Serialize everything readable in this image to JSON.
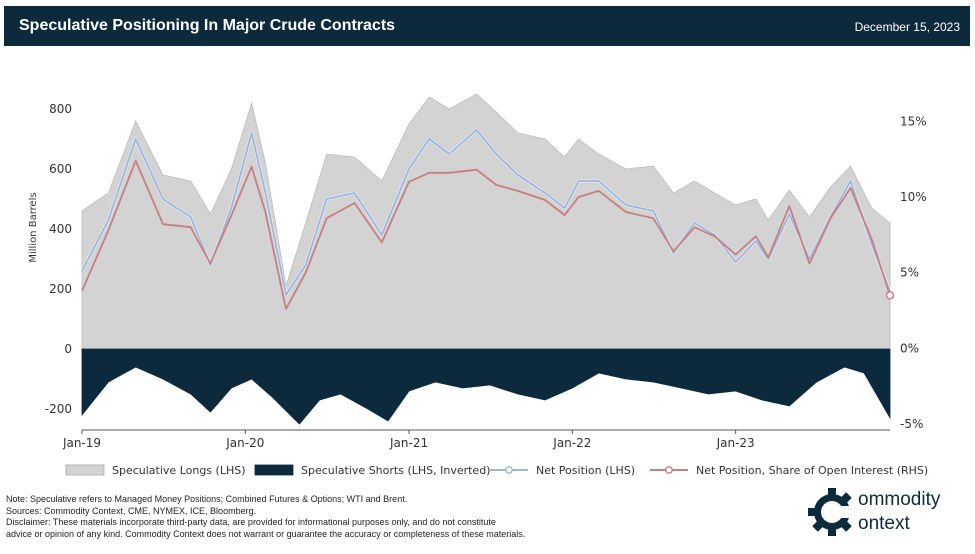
{
  "header": {
    "title": "Speculative Positioning In Major Crude Contracts",
    "date": "December 15, 2023"
  },
  "colors": {
    "header_bg": "#0d2a3c",
    "longs": "#d3d3d3",
    "shorts": "#0d2a3c",
    "net": "#9fb5d8",
    "share": "#c77f80"
  },
  "chart_data": {
    "type": "area",
    "ylabel": "Million Barrels",
    "ylim": [
      -270,
      880
    ],
    "ylim_right_pct": [
      -5.4,
      17.4
    ],
    "y_ticks": [
      -200,
      0,
      200,
      400,
      600,
      800
    ],
    "y_tick_labels": [
      "-200",
      "0",
      "200",
      "400",
      "600",
      "800"
    ],
    "y2_ticks": [
      -5,
      0,
      5,
      10,
      15
    ],
    "y2_tick_labels": [
      "-5%",
      "0%",
      "5%",
      "10%",
      "15%"
    ],
    "x_ticks": [
      "2019-01",
      "2020-01",
      "2021-01",
      "2022-01",
      "2023-01"
    ],
    "x_tick_labels": [
      "Jan-19",
      "Jan-20",
      "Jan-21",
      "Jan-22",
      "Jan-23"
    ],
    "x_range": [
      "2019-01-01",
      "2023-12-12"
    ],
    "grid": false,
    "legend_position": "bottom",
    "series": [
      {
        "name": "Speculative Longs (LHS)",
        "axis": "left",
        "style": "area",
        "points": [
          [
            "2019-01-01",
            460
          ],
          [
            "2019-03-01",
            520
          ],
          [
            "2019-05-01",
            760
          ],
          [
            "2019-07-01",
            580
          ],
          [
            "2019-09-01",
            560
          ],
          [
            "2019-10-15",
            450
          ],
          [
            "2019-12-01",
            600
          ],
          [
            "2020-01-15",
            820
          ],
          [
            "2020-02-15",
            620
          ],
          [
            "2020-04-01",
            210
          ],
          [
            "2020-05-15",
            420
          ],
          [
            "2020-07-01",
            650
          ],
          [
            "2020-09-01",
            640
          ],
          [
            "2020-11-01",
            560
          ],
          [
            "2021-01-01",
            750
          ],
          [
            "2021-02-15",
            840
          ],
          [
            "2021-04-01",
            800
          ],
          [
            "2021-06-01",
            850
          ],
          [
            "2021-07-15",
            790
          ],
          [
            "2021-09-01",
            720
          ],
          [
            "2021-11-01",
            700
          ],
          [
            "2021-12-15",
            640
          ],
          [
            "2022-01-15",
            700
          ],
          [
            "2022-03-01",
            650
          ],
          [
            "2022-05-01",
            600
          ],
          [
            "2022-07-01",
            610
          ],
          [
            "2022-08-15",
            520
          ],
          [
            "2022-10-01",
            560
          ],
          [
            "2022-11-15",
            520
          ],
          [
            "2023-01-01",
            480
          ],
          [
            "2023-02-15",
            500
          ],
          [
            "2023-03-15",
            430
          ],
          [
            "2023-05-01",
            530
          ],
          [
            "2023-06-15",
            440
          ],
          [
            "2023-08-01",
            540
          ],
          [
            "2023-09-15",
            610
          ],
          [
            "2023-11-01",
            470
          ],
          [
            "2023-12-12",
            420
          ]
        ]
      },
      {
        "name": "Speculative Shorts (LHS, Inverted)",
        "axis": "left",
        "style": "area",
        "points": [
          [
            "2019-01-01",
            -220
          ],
          [
            "2019-03-01",
            -110
          ],
          [
            "2019-05-01",
            -60
          ],
          [
            "2019-07-01",
            -100
          ],
          [
            "2019-09-01",
            -150
          ],
          [
            "2019-10-15",
            -210
          ],
          [
            "2019-12-01",
            -130
          ],
          [
            "2020-01-15",
            -100
          ],
          [
            "2020-03-01",
            -160
          ],
          [
            "2020-05-01",
            -250
          ],
          [
            "2020-06-15",
            -170
          ],
          [
            "2020-08-01",
            -150
          ],
          [
            "2020-10-01",
            -200
          ],
          [
            "2020-11-15",
            -240
          ],
          [
            "2021-01-01",
            -140
          ],
          [
            "2021-03-01",
            -110
          ],
          [
            "2021-05-01",
            -130
          ],
          [
            "2021-07-01",
            -120
          ],
          [
            "2021-09-01",
            -150
          ],
          [
            "2021-11-01",
            -170
          ],
          [
            "2022-01-01",
            -130
          ],
          [
            "2022-03-01",
            -80
          ],
          [
            "2022-05-01",
            -100
          ],
          [
            "2022-07-01",
            -110
          ],
          [
            "2022-09-01",
            -130
          ],
          [
            "2022-11-01",
            -150
          ],
          [
            "2023-01-01",
            -140
          ],
          [
            "2023-03-01",
            -170
          ],
          [
            "2023-05-01",
            -190
          ],
          [
            "2023-07-01",
            -110
          ],
          [
            "2023-09-01",
            -60
          ],
          [
            "2023-10-15",
            -80
          ],
          [
            "2023-12-12",
            -230
          ]
        ]
      },
      {
        "name": "Net Position (LHS)",
        "axis": "left",
        "style": "line",
        "points": [
          [
            "2019-01-01",
            260
          ],
          [
            "2019-03-01",
            430
          ],
          [
            "2019-05-01",
            700
          ],
          [
            "2019-07-01",
            500
          ],
          [
            "2019-09-01",
            440
          ],
          [
            "2019-10-15",
            280
          ],
          [
            "2019-12-01",
            470
          ],
          [
            "2020-01-15",
            720
          ],
          [
            "2020-02-15",
            520
          ],
          [
            "2020-04-01",
            180
          ],
          [
            "2020-05-15",
            280
          ],
          [
            "2020-07-01",
            500
          ],
          [
            "2020-09-01",
            520
          ],
          [
            "2020-11-01",
            380
          ],
          [
            "2021-01-01",
            600
          ],
          [
            "2021-02-15",
            700
          ],
          [
            "2021-04-01",
            650
          ],
          [
            "2021-06-01",
            730
          ],
          [
            "2021-07-15",
            650
          ],
          [
            "2021-09-01",
            580
          ],
          [
            "2021-11-01",
            520
          ],
          [
            "2021-12-15",
            470
          ],
          [
            "2022-01-15",
            560
          ],
          [
            "2022-03-01",
            560
          ],
          [
            "2022-05-01",
            480
          ],
          [
            "2022-07-01",
            460
          ],
          [
            "2022-08-15",
            320
          ],
          [
            "2022-10-01",
            420
          ],
          [
            "2022-11-15",
            380
          ],
          [
            "2023-01-01",
            290
          ],
          [
            "2023-02-15",
            360
          ],
          [
            "2023-03-15",
            300
          ],
          [
            "2023-05-01",
            450
          ],
          [
            "2023-06-15",
            300
          ],
          [
            "2023-08-01",
            440
          ],
          [
            "2023-09-15",
            560
          ],
          [
            "2023-11-01",
            350
          ],
          [
            "2023-12-12",
            190
          ]
        ]
      },
      {
        "name": "Net Position, Share of Open Interest (RHS)",
        "axis": "right",
        "style": "line",
        "points": [
          [
            "2019-01-01",
            3.8
          ],
          [
            "2019-03-01",
            7.8
          ],
          [
            "2019-05-01",
            12.4
          ],
          [
            "2019-07-01",
            8.2
          ],
          [
            "2019-09-01",
            8.0
          ],
          [
            "2019-10-15",
            5.6
          ],
          [
            "2019-12-01",
            8.8
          ],
          [
            "2020-01-15",
            12.0
          ],
          [
            "2020-02-15",
            9.0
          ],
          [
            "2020-04-01",
            2.6
          ],
          [
            "2020-05-15",
            5.0
          ],
          [
            "2020-07-01",
            8.6
          ],
          [
            "2020-09-01",
            9.6
          ],
          [
            "2020-11-01",
            7.0
          ],
          [
            "2021-01-01",
            11.0
          ],
          [
            "2021-02-15",
            11.6
          ],
          [
            "2021-04-01",
            11.6
          ],
          [
            "2021-06-01",
            11.8
          ],
          [
            "2021-07-15",
            10.8
          ],
          [
            "2021-09-01",
            10.4
          ],
          [
            "2021-11-01",
            9.8
          ],
          [
            "2021-12-15",
            8.8
          ],
          [
            "2022-01-15",
            10.0
          ],
          [
            "2022-03-01",
            10.4
          ],
          [
            "2022-05-01",
            9.0
          ],
          [
            "2022-07-01",
            8.6
          ],
          [
            "2022-08-15",
            6.4
          ],
          [
            "2022-10-01",
            8.0
          ],
          [
            "2022-11-15",
            7.4
          ],
          [
            "2023-01-01",
            6.2
          ],
          [
            "2023-02-15",
            7.4
          ],
          [
            "2023-03-15",
            6.0
          ],
          [
            "2023-05-01",
            9.4
          ],
          [
            "2023-06-15",
            5.6
          ],
          [
            "2023-08-01",
            8.6
          ],
          [
            "2023-09-15",
            10.6
          ],
          [
            "2023-11-01",
            7.2
          ],
          [
            "2023-12-12",
            3.5
          ]
        ]
      }
    ],
    "legend": [
      {
        "label": "Speculative Longs (LHS)",
        "key": "longs"
      },
      {
        "label": "Speculative Shorts (LHS, Inverted)",
        "key": "shorts"
      },
      {
        "label": "Net Position (LHS)",
        "key": "net"
      },
      {
        "label": "Net Position, Share of Open Interest (RHS)",
        "key": "share"
      }
    ]
  },
  "footer": {
    "note": "Note: Speculative refers to Managed Money Positions; Combined Futures & Options; WTI and Brent.",
    "sources": "Sources: Commodity Context, CME, NYMEX, ICE, Bloomberg.",
    "disclaimer_1": "Disclaimer: These materials incorporate third-party data, are provided for informational purposes only, and do not constitute",
    "disclaimer_2": "advice or opinion of any kind. Commodity Context does not warrant or guarantee the accuracy or completeness of these materials."
  },
  "logo": {
    "line1": "ommodity",
    "line2": "ontext",
    "icon": "gear-c-icon"
  }
}
